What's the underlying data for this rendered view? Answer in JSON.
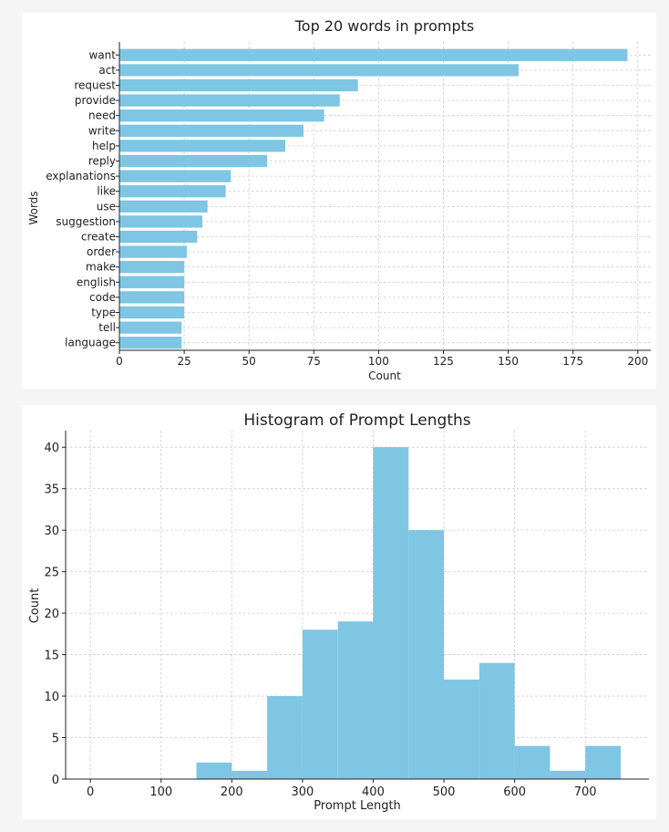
{
  "colors": {
    "bar": "#7ec6e3"
  },
  "chart_data": [
    {
      "type": "bar",
      "orientation": "horizontal",
      "title": "Top 20 words in prompts",
      "xlabel": "Count",
      "ylabel": "Words",
      "categories": [
        "want",
        "act",
        "request",
        "provide",
        "need",
        "write",
        "help",
        "reply",
        "explanations",
        "like",
        "use",
        "suggestion",
        "create",
        "order",
        "make",
        "english",
        "code",
        "type",
        "tell",
        "language"
      ],
      "values": [
        196,
        154,
        92,
        85,
        79,
        71,
        64,
        57,
        43,
        41,
        34,
        32,
        30,
        26,
        25,
        25,
        25,
        25,
        24,
        24
      ],
      "xlim": [
        0,
        205
      ],
      "xticks": [
        0,
        25,
        50,
        75,
        100,
        125,
        150,
        175,
        200
      ],
      "grid": true
    },
    {
      "type": "bar",
      "subtype": "histogram",
      "title": "Histogram of Prompt Lengths",
      "xlabel": "Prompt Length",
      "ylabel": "Count",
      "bin_width": 50,
      "bins": [
        150,
        200,
        250,
        300,
        350,
        400,
        450,
        500,
        550,
        600,
        650,
        700
      ],
      "values": [
        2,
        1,
        10,
        18,
        19,
        40,
        30,
        12,
        14,
        4,
        1,
        4
      ],
      "xlim": [
        -35,
        790
      ],
      "ylim": [
        0,
        42
      ],
      "xticks": [
        0,
        100,
        200,
        300,
        400,
        500,
        600,
        700
      ],
      "yticks": [
        0,
        5,
        10,
        15,
        20,
        25,
        30,
        35,
        40
      ],
      "grid": true
    }
  ]
}
